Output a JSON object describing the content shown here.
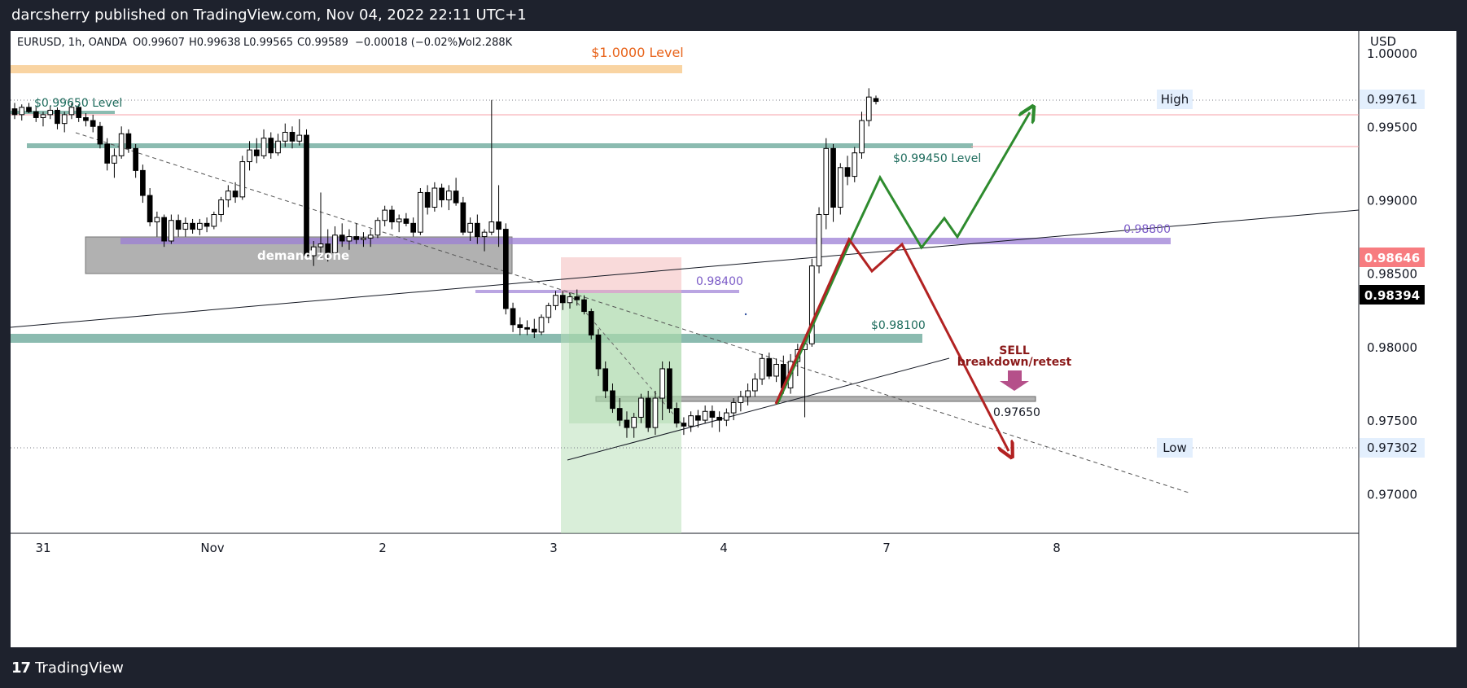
{
  "header": {
    "publisher_line": "darcsherry published on TradingView.com, Nov 04, 2022 22:11 UTC+1"
  },
  "legend": {
    "symbol": "EURUSD, 1h, OANDA",
    "open": "O0.99607",
    "high": "H0.99638",
    "low": "L0.99565",
    "close": "C0.99589",
    "change": "−0.00018 (−0.02%)",
    "volume": "Vol2.288K"
  },
  "axis": {
    "currency": "USD",
    "high_tag": "High",
    "high_value": "0.99761",
    "low_tag": "Low",
    "low_value": "0.97302",
    "current_price": "0.98394",
    "marker_price": "0.98646"
  },
  "annotations": {
    "level_1": "$1.0000 Level",
    "level_99650": "$0.99650 Level",
    "level_99450": "$0.99450 Level",
    "level_98800": "0.98800",
    "level_98400": "0.98400",
    "level_98100": "$0.98100",
    "level_97650": "0.97650",
    "demand": "demand zone",
    "sell_1": "SELL",
    "sell_2": "breakdown/retest"
  },
  "footer": {
    "brand": "TradingView"
  },
  "colors": {
    "up": "#ffffff",
    "down": "#000000",
    "green_path": "#2e8b2e",
    "red_path": "#b22222",
    "purple_zone": "#9c7fd6",
    "teal_zone": "#5a9e8f",
    "orange_zone": "#f5c27a",
    "demand_zone": "#9e9e9e"
  },
  "chart_data": {
    "type": "candlestick",
    "symbol": "EURUSD",
    "timeframe": "1h",
    "y_ticks": [
      1.0,
      0.995,
      0.99,
      0.985,
      0.98,
      0.975,
      0.97
    ],
    "x_ticks": [
      "31",
      "Nov",
      "2",
      "3",
      "4",
      "7",
      "8"
    ],
    "ylim": [
      0.9673,
      1.0015
    ],
    "price_levels": [
      1.0,
      0.9965,
      0.9945,
      0.988,
      0.984,
      0.981,
      0.9765
    ],
    "high": 0.99761,
    "low": 0.97302,
    "last": 0.98394,
    "candles_ohlc": [
      [
        0.9962,
        0.9966,
        0.9955,
        0.9958
      ],
      [
        0.9958,
        0.9965,
        0.9954,
        0.9963
      ],
      [
        0.9963,
        0.9966,
        0.9959,
        0.996
      ],
      [
        0.996,
        0.9964,
        0.9953,
        0.9956
      ],
      [
        0.9956,
        0.996,
        0.995,
        0.9958
      ],
      [
        0.9958,
        0.9964,
        0.9955,
        0.9961
      ],
      [
        0.9961,
        0.9963,
        0.9948,
        0.9952
      ],
      [
        0.9952,
        0.996,
        0.9946,
        0.9958
      ],
      [
        0.9958,
        0.9966,
        0.9955,
        0.9963
      ],
      [
        0.9963,
        0.9965,
        0.9953,
        0.9956
      ],
      [
        0.9956,
        0.9959,
        0.995,
        0.9954
      ],
      [
        0.9954,
        0.9958,
        0.9946,
        0.995
      ],
      [
        0.995,
        0.9953,
        0.9935,
        0.9938
      ],
      [
        0.9938,
        0.9942,
        0.992,
        0.9925
      ],
      [
        0.9925,
        0.9935,
        0.9915,
        0.993
      ],
      [
        0.993,
        0.995,
        0.9928,
        0.9945
      ],
      [
        0.9945,
        0.9948,
        0.9932,
        0.9935
      ],
      [
        0.9935,
        0.9938,
        0.9915,
        0.992
      ],
      [
        0.992,
        0.9924,
        0.9898,
        0.9903
      ],
      [
        0.9903,
        0.9908,
        0.9882,
        0.9885
      ],
      [
        0.9885,
        0.9892,
        0.9875,
        0.9888
      ],
      [
        0.9888,
        0.989,
        0.9868,
        0.9872
      ],
      [
        0.9872,
        0.989,
        0.987,
        0.9886
      ],
      [
        0.9886,
        0.989,
        0.9875,
        0.988
      ],
      [
        0.988,
        0.9888,
        0.9875,
        0.9884
      ],
      [
        0.9884,
        0.9887,
        0.9877,
        0.988
      ],
      [
        0.988,
        0.9887,
        0.9876,
        0.9884
      ],
      [
        0.9884,
        0.9888,
        0.9878,
        0.9882
      ],
      [
        0.9882,
        0.9892,
        0.988,
        0.989
      ],
      [
        0.989,
        0.9902,
        0.9885,
        0.99
      ],
      [
        0.99,
        0.991,
        0.9895,
        0.9906
      ],
      [
        0.9906,
        0.9912,
        0.9898,
        0.9902
      ],
      [
        0.9902,
        0.993,
        0.99,
        0.9926
      ],
      [
        0.9926,
        0.994,
        0.992,
        0.9934
      ],
      [
        0.9934,
        0.9942,
        0.9925,
        0.993
      ],
      [
        0.993,
        0.9948,
        0.9928,
        0.9942
      ],
      [
        0.9942,
        0.9946,
        0.9928,
        0.9932
      ],
      [
        0.9932,
        0.9945,
        0.993,
        0.994
      ],
      [
        0.994,
        0.9952,
        0.9936,
        0.9946
      ],
      [
        0.9946,
        0.995,
        0.9935,
        0.994
      ],
      [
        0.994,
        0.9955,
        0.9937,
        0.9944
      ],
      [
        0.9944,
        0.9948,
        0.988,
        0.9862
      ],
      [
        0.9862,
        0.9872,
        0.9855,
        0.9868
      ],
      [
        0.9868,
        0.9905,
        0.986,
        0.987
      ],
      [
        0.987,
        0.988,
        0.9858,
        0.9864
      ],
      [
        0.9864,
        0.9882,
        0.9862,
        0.9876
      ],
      [
        0.9876,
        0.9884,
        0.9868,
        0.9872
      ],
      [
        0.9872,
        0.988,
        0.9866,
        0.9875
      ],
      [
        0.9875,
        0.9884,
        0.987,
        0.9873
      ],
      [
        0.9873,
        0.9878,
        0.9868,
        0.9874
      ],
      [
        0.9874,
        0.988,
        0.9868,
        0.9876
      ],
      [
        0.9876,
        0.9888,
        0.9874,
        0.9886
      ],
      [
        0.9886,
        0.9896,
        0.9882,
        0.9893
      ],
      [
        0.9893,
        0.9896,
        0.988,
        0.9885
      ],
      [
        0.9885,
        0.989,
        0.9878,
        0.9887
      ],
      [
        0.9887,
        0.9891,
        0.9882,
        0.9884
      ],
      [
        0.9884,
        0.9888,
        0.9875,
        0.9878
      ],
      [
        0.9878,
        0.9908,
        0.9876,
        0.9905
      ],
      [
        0.9905,
        0.991,
        0.989,
        0.9895
      ],
      [
        0.9895,
        0.9912,
        0.9892,
        0.9908
      ],
      [
        0.9908,
        0.9911,
        0.9895,
        0.99
      ],
      [
        0.99,
        0.991,
        0.9893,
        0.9906
      ],
      [
        0.9906,
        0.9915,
        0.9896,
        0.9898
      ],
      [
        0.9898,
        0.9902,
        0.9876,
        0.9878
      ],
      [
        0.9878,
        0.9888,
        0.9872,
        0.9884
      ],
      [
        0.9884,
        0.989,
        0.987,
        0.9875
      ],
      [
        0.9875,
        0.988,
        0.9865,
        0.9878
      ],
      [
        0.9878,
        0.9968,
        0.9876,
        0.9885
      ],
      [
        0.9885,
        0.991,
        0.9868,
        0.988
      ],
      [
        0.988,
        0.9884,
        0.9822,
        0.9826
      ],
      [
        0.9826,
        0.983,
        0.981,
        0.9815
      ],
      [
        0.9815,
        0.982,
        0.9808,
        0.9813
      ],
      [
        0.9813,
        0.9818,
        0.9808,
        0.9812
      ],
      [
        0.9812,
        0.9819,
        0.9806,
        0.981
      ],
      [
        0.981,
        0.9822,
        0.9808,
        0.982
      ],
      [
        0.982,
        0.983,
        0.9816,
        0.9828
      ],
      [
        0.9828,
        0.9838,
        0.9825,
        0.9835
      ],
      [
        0.9835,
        0.9838,
        0.9825,
        0.983
      ],
      [
        0.983,
        0.9837,
        0.9826,
        0.9834
      ],
      [
        0.9834,
        0.9839,
        0.9828,
        0.9832
      ],
      [
        0.9832,
        0.9835,
        0.9822,
        0.9824
      ],
      [
        0.9824,
        0.9826,
        0.9805,
        0.9808
      ],
      [
        0.9808,
        0.9812,
        0.978,
        0.9785
      ],
      [
        0.9785,
        0.979,
        0.9765,
        0.977
      ],
      [
        0.977,
        0.9775,
        0.9755,
        0.9758
      ],
      [
        0.9758,
        0.9765,
        0.9746,
        0.975
      ],
      [
        0.975,
        0.9756,
        0.9738,
        0.9745
      ],
      [
        0.9745,
        0.9755,
        0.9738,
        0.9752
      ],
      [
        0.9752,
        0.9768,
        0.9748,
        0.9765
      ],
      [
        0.9765,
        0.977,
        0.9742,
        0.9745
      ],
      [
        0.9745,
        0.977,
        0.974,
        0.9765
      ],
      [
        0.9765,
        0.979,
        0.975,
        0.9785
      ],
      [
        0.9785,
        0.979,
        0.9755,
        0.9758
      ],
      [
        0.9758,
        0.9762,
        0.9745,
        0.9748
      ],
      [
        0.9748,
        0.9752,
        0.974,
        0.9746
      ],
      [
        0.9746,
        0.9756,
        0.9742,
        0.9753
      ],
      [
        0.9753,
        0.9757,
        0.9745,
        0.975
      ],
      [
        0.975,
        0.976,
        0.9748,
        0.9756
      ],
      [
        0.9756,
        0.976,
        0.9745,
        0.9752
      ],
      [
        0.9752,
        0.9756,
        0.9742,
        0.975
      ],
      [
        0.975,
        0.9758,
        0.9746,
        0.9755
      ],
      [
        0.9755,
        0.9765,
        0.975,
        0.9762
      ],
      [
        0.9762,
        0.977,
        0.9756,
        0.9766
      ],
      [
        0.9766,
        0.9775,
        0.976,
        0.977
      ],
      [
        0.977,
        0.9782,
        0.9766,
        0.9778
      ],
      [
        0.9778,
        0.9795,
        0.9774,
        0.9792
      ],
      [
        0.9792,
        0.9796,
        0.9778,
        0.978
      ],
      [
        0.978,
        0.9792,
        0.9776,
        0.9788
      ],
      [
        0.9788,
        0.9794,
        0.9768,
        0.9772
      ],
      [
        0.9772,
        0.9795,
        0.9768,
        0.979
      ],
      [
        0.979,
        0.9802,
        0.978,
        0.9798
      ],
      [
        0.9798,
        0.9805,
        0.9752,
        0.9802
      ],
      [
        0.9802,
        0.986,
        0.98,
        0.9855
      ],
      [
        0.9855,
        0.9895,
        0.985,
        0.989
      ],
      [
        0.989,
        0.9942,
        0.988,
        0.9935
      ],
      [
        0.9935,
        0.9938,
        0.9885,
        0.9895
      ],
      [
        0.9895,
        0.9925,
        0.989,
        0.9922
      ],
      [
        0.9922,
        0.993,
        0.991,
        0.9916
      ],
      [
        0.9916,
        0.9936,
        0.9912,
        0.9932
      ],
      [
        0.9932,
        0.996,
        0.9928,
        0.9954
      ],
      [
        0.9954,
        0.9976,
        0.995,
        0.997
      ],
      [
        0.9969,
        0.9971,
        0.9965,
        0.9967
      ]
    ]
  }
}
